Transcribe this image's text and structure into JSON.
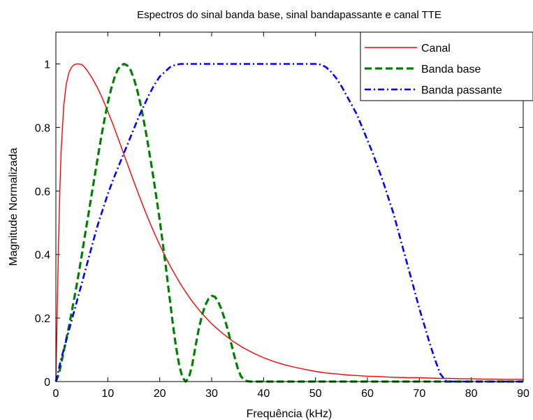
{
  "chart_data": {
    "type": "line",
    "title": "Espectros do sinal banda base, sinal bandapassante e canal TTE",
    "xlabel": "Frequência (kHz)",
    "ylabel": "Magnitude Normalizada",
    "xlim": [
      0,
      90
    ],
    "ylim": [
      0,
      1.1
    ],
    "xticks": [
      "0",
      "10",
      "20",
      "30",
      "40",
      "50",
      "60",
      "70",
      "80",
      "90"
    ],
    "yticks": [
      "0",
      "0.2",
      "0.4",
      "0.6",
      "0.8",
      "1"
    ],
    "grid": false,
    "legend_position": "top-right",
    "series": [
      {
        "name": "Canal",
        "color": "#ff0000",
        "style": "solid",
        "x": [
          0,
          0.25,
          0.5,
          0.75,
          1,
          1.5,
          2,
          2.5,
          3,
          3.5,
          4,
          4.5,
          5,
          5.5,
          6,
          7,
          8,
          9,
          10,
          11,
          12,
          13,
          14,
          15,
          16,
          17,
          18,
          19,
          20,
          21,
          22,
          23,
          24,
          25,
          26,
          27,
          28,
          29,
          30,
          32,
          34,
          36,
          38,
          40,
          42,
          44,
          46,
          48,
          50,
          52,
          54,
          56,
          58,
          60,
          62,
          64,
          66,
          68,
          70,
          72,
          74,
          76,
          78,
          80,
          82,
          84,
          86,
          88,
          90
        ],
        "y": [
          0.0,
          0.221,
          0.428,
          0.597,
          0.72,
          0.867,
          0.937,
          0.972,
          0.989,
          0.997,
          1.0,
          1.0,
          0.998,
          0.99,
          0.98,
          0.955,
          0.925,
          0.89,
          0.851,
          0.809,
          0.765,
          0.72,
          0.675,
          0.63,
          0.587,
          0.544,
          0.504,
          0.466,
          0.43,
          0.396,
          0.364,
          0.335,
          0.307,
          0.282,
          0.258,
          0.237,
          0.217,
          0.199,
          0.182,
          0.153,
          0.128,
          0.107,
          0.09,
          0.075,
          0.063,
          0.053,
          0.045,
          0.038,
          0.032,
          0.027,
          0.024,
          0.021,
          0.019,
          0.017,
          0.016,
          0.014,
          0.013,
          0.012,
          0.012,
          0.011,
          0.01,
          0.01,
          0.009,
          0.009,
          0.008,
          0.008,
          0.007,
          0.007,
          0.007
        ]
      },
      {
        "name": "Banda base",
        "color": "#008000",
        "style": "dashed",
        "x": [
          0,
          0.625,
          1.25,
          1.875,
          2.5,
          3.125,
          3.75,
          4.375,
          5,
          5.625,
          6.25,
          6.875,
          7.5,
          8.125,
          8.75,
          9.375,
          10,
          10.625,
          11.25,
          11.875,
          12.5,
          13.125,
          13.75,
          14.375,
          15,
          15.625,
          16.25,
          16.875,
          17.5,
          18.125,
          18.75,
          19.375,
          20,
          20.625,
          21.25,
          21.875,
          22.5,
          23.125,
          23.75,
          24.375,
          25,
          25.625,
          26.25,
          26.875,
          27.5,
          28.125,
          28.75,
          29.375,
          30,
          30.625,
          31.25,
          31.875,
          32.5,
          33.125,
          33.75,
          34.375,
          35,
          35.625,
          36.25,
          36.875,
          37.5,
          38.125,
          38.75,
          39.375,
          40,
          41,
          42,
          45,
          50,
          55,
          60,
          65,
          70,
          75,
          80,
          85,
          90
        ],
        "y": [
          0.0,
          0.026,
          0.075,
          0.123,
          0.172,
          0.226,
          0.281,
          0.338,
          0.4,
          0.463,
          0.525,
          0.588,
          0.65,
          0.711,
          0.771,
          0.826,
          0.877,
          0.92,
          0.955,
          0.981,
          0.995,
          1.0,
          0.995,
          0.981,
          0.955,
          0.92,
          0.877,
          0.826,
          0.77,
          0.709,
          0.645,
          0.578,
          0.507,
          0.431,
          0.351,
          0.267,
          0.184,
          0.11,
          0.052,
          0.013,
          0.0,
          0.013,
          0.052,
          0.11,
          0.164,
          0.208,
          0.24,
          0.26,
          0.27,
          0.267,
          0.252,
          0.228,
          0.197,
          0.162,
          0.121,
          0.08,
          0.043,
          0.017,
          0.005,
          0.001,
          0.0,
          0.0,
          0.0,
          0.0,
          0.0,
          0.0,
          0.0,
          0.0,
          0.0,
          0.0,
          0.0,
          0.0,
          0.0,
          0.0,
          0.0,
          0.0,
          0.0
        ]
      },
      {
        "name": "Banda passante",
        "color": "#0000ff",
        "style": "dashdot",
        "x": [
          0,
          1,
          2,
          3,
          4,
          5,
          6,
          7,
          8,
          9,
          10,
          11,
          12,
          13,
          14,
          15,
          16,
          17,
          18,
          19,
          20,
          21,
          22,
          23,
          24,
          25,
          30,
          35,
          40,
          45,
          50,
          51,
          52,
          53,
          54,
          55,
          56,
          57,
          58,
          59,
          60,
          61,
          62,
          63,
          64,
          65,
          66,
          67,
          68,
          69,
          70,
          71,
          72,
          73,
          74,
          75,
          76,
          78,
          80,
          85,
          90
        ],
        "y": [
          0.0,
          0.07,
          0.13,
          0.19,
          0.25,
          0.31,
          0.37,
          0.43,
          0.49,
          0.54,
          0.59,
          0.635,
          0.675,
          0.715,
          0.755,
          0.795,
          0.835,
          0.87,
          0.905,
          0.935,
          0.96,
          0.975,
          0.99,
          0.997,
          1.0,
          1.0,
          1.0,
          1.0,
          1.0,
          1.0,
          1.0,
          0.998,
          0.99,
          0.975,
          0.955,
          0.93,
          0.9,
          0.87,
          0.84,
          0.8,
          0.76,
          0.72,
          0.675,
          0.63,
          0.58,
          0.53,
          0.47,
          0.41,
          0.35,
          0.29,
          0.23,
          0.175,
          0.12,
          0.07,
          0.025,
          0.003,
          0.0,
          0.0,
          0.0,
          0.0,
          0.0
        ]
      }
    ]
  }
}
